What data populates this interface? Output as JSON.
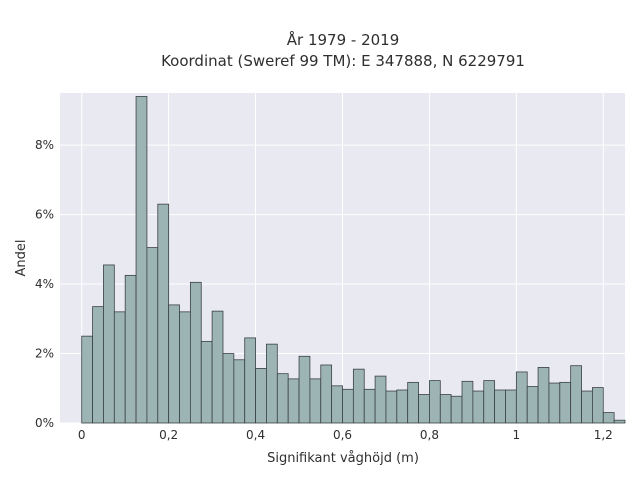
{
  "chart_data": {
    "type": "bar",
    "title": "År 1979 - 2019",
    "subtitle": "Koordinat (Sweref 99 TM): E 347888, N 6229791",
    "xlabel": "Signifikant våghöjd (m)",
    "ylabel": "Andel",
    "xlim": [
      -0.05,
      1.25
    ],
    "ylim": [
      0,
      0.095
    ],
    "grid": true,
    "legend": "none",
    "bin_width": 0.025,
    "bin_start": 0.0125,
    "x_ticks": [
      0,
      0.2,
      0.4,
      0.6,
      0.8,
      1,
      1.2
    ],
    "x_tick_labels": [
      "0",
      "0,2",
      "0,4",
      "0,6",
      "0,8",
      "1",
      "1,2"
    ],
    "y_ticks": [
      0,
      0.02,
      0.04,
      0.06,
      0.08
    ],
    "y_tick_labels": [
      "0%",
      "2%",
      "4%",
      "6%",
      "8%"
    ],
    "values": [
      0.025,
      0.0335,
      0.0455,
      0.032,
      0.0425,
      0.094,
      0.0505,
      0.063,
      0.034,
      0.032,
      0.0405,
      0.0235,
      0.0322,
      0.02,
      0.0182,
      0.0245,
      0.0157,
      0.0227,
      0.0142,
      0.0127,
      0.0192,
      0.0127,
      0.0167,
      0.0107,
      0.0097,
      0.0155,
      0.0097,
      0.0135,
      0.0092,
      0.0095,
      0.0117,
      0.0082,
      0.0122,
      0.0082,
      0.0077,
      0.012,
      0.0092,
      0.0122,
      0.0095,
      0.0095,
      0.0147,
      0.0105,
      0.016,
      0.0115,
      0.0117,
      0.0165,
      0.0092,
      0.0102,
      0.003,
      0.0008
    ],
    "colors": {
      "plot_bg": "#e9e9f1",
      "grid": "#ffffff",
      "bar_fill": "#9db4b5",
      "bar_edge": "#3a4242",
      "text": "#2f2f2f"
    }
  }
}
